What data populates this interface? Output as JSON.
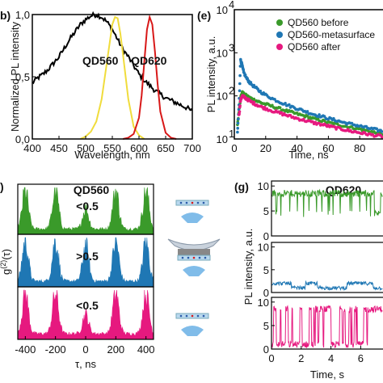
{
  "panels": {
    "b": "b)",
    "e": "(e)",
    "f": ")",
    "g": "(g)"
  },
  "colors": {
    "black": "#000000",
    "yellow": "#f0dc3c",
    "red": "#d81818",
    "green": "#3a9a2a",
    "blue": "#1f77b4",
    "magenta": "#e6197f",
    "qd560_label": "#e6c21e",
    "qd620_label": "#d81818"
  },
  "chart_data": [
    {
      "id": "b",
      "type": "line",
      "xlabel": "Wavelength, nm",
      "ylabel": "Normalized PL intensity",
      "xlim": [
        400,
        700
      ],
      "ylim": [
        0,
        1.0
      ],
      "xticks": [
        "400",
        "450",
        "500",
        "550",
        "600",
        "650",
        "700"
      ],
      "yticks": [
        "0,0",
        "0,5",
        "1,0"
      ],
      "annotations": [
        "QD560",
        "QD620"
      ],
      "series": [
        {
          "color": "black",
          "x": [
            400,
            410,
            420,
            430,
            440,
            450,
            460,
            470,
            480,
            490,
            500,
            510,
            520,
            530,
            540,
            550,
            560,
            570,
            580,
            590,
            600,
            610,
            620,
            630,
            640,
            650,
            660,
            670,
            680,
            690,
            700
          ],
          "y": [
            0.45,
            0.49,
            0.52,
            0.56,
            0.61,
            0.66,
            0.73,
            0.8,
            0.86,
            0.92,
            0.96,
            0.99,
            1.0,
            0.98,
            0.94,
            0.88,
            0.8,
            0.72,
            0.66,
            0.59,
            0.52,
            0.47,
            0.43,
            0.39,
            0.36,
            0.33,
            0.31,
            0.29,
            0.27,
            0.25,
            0.22
          ]
        },
        {
          "name": "QD560",
          "color": "yellow",
          "x": [
            490,
            500,
            510,
            520,
            530,
            540,
            550,
            555,
            560,
            565,
            570,
            580,
            590,
            600,
            610
          ],
          "y": [
            0.0,
            0.02,
            0.06,
            0.14,
            0.32,
            0.62,
            0.92,
            0.98,
            0.97,
            0.85,
            0.68,
            0.32,
            0.1,
            0.03,
            0.0
          ]
        },
        {
          "name": "QD620",
          "color": "red",
          "x": [
            570,
            580,
            590,
            600,
            605,
            610,
            615,
            620,
            625,
            630,
            635,
            640,
            650,
            660,
            670
          ],
          "y": [
            0.0,
            0.01,
            0.04,
            0.17,
            0.35,
            0.62,
            0.88,
            0.98,
            0.92,
            0.7,
            0.44,
            0.22,
            0.05,
            0.01,
            0.0
          ]
        }
      ]
    },
    {
      "id": "e",
      "type": "scatter",
      "xlabel": "Time, ns",
      "ylabel": "PL intensity, a.u.",
      "xlim": [
        0,
        100
      ],
      "ylim_log": [
        10,
        10000
      ],
      "xticks": [
        "0",
        "20",
        "40",
        "60",
        "80"
      ],
      "yticks": [
        "10",
        "10",
        "10",
        "10"
      ],
      "ytick_sups": [
        "1",
        "2",
        "3",
        "4"
      ],
      "legend_position": "top-right",
      "series": [
        {
          "name": "QD560 before",
          "color": "green",
          "x": [
            2,
            3,
            4,
            5,
            6,
            8,
            10,
            13,
            16,
            20,
            25,
            30,
            35,
            40,
            45,
            50,
            55,
            60,
            65,
            70,
            75,
            80,
            85,
            90,
            95,
            100
          ],
          "y": [
            22,
            45,
            90,
            120,
            110,
            100,
            90,
            80,
            72,
            64,
            56,
            49,
            43,
            38,
            34,
            30,
            27,
            24,
            22,
            20,
            18.5,
            17,
            15.5,
            14,
            13,
            12
          ]
        },
        {
          "name": "QD560-metasurface",
          "color": "blue",
          "x": [
            2,
            3,
            4,
            5,
            6,
            8,
            10,
            13,
            16,
            20,
            25,
            30,
            35,
            40,
            45,
            50,
            55,
            60,
            65,
            70,
            75,
            80,
            85,
            90,
            95,
            100
          ],
          "y": [
            14,
            60,
            700,
            500,
            350,
            250,
            200,
            160,
            130,
            105,
            84,
            70,
            59,
            51,
            44,
            38,
            34,
            30,
            27,
            24,
            22,
            20,
            18,
            16.5,
            15,
            14
          ]
        },
        {
          "name": "QD560 after",
          "color": "magenta",
          "x": [
            3,
            4,
            5,
            6,
            8,
            10,
            13,
            16,
            20,
            25,
            30,
            35,
            40,
            45,
            50,
            55,
            60,
            65,
            70,
            75,
            80,
            85,
            90,
            95,
            100
          ],
          "y": [
            35,
            80,
            100,
            95,
            85,
            75,
            66,
            58,
            51,
            44,
            39,
            34,
            30,
            27,
            24,
            22,
            20,
            18,
            16.5,
            15,
            14,
            13,
            12,
            11.5,
            11
          ]
        }
      ]
    },
    {
      "id": "f",
      "type": "area",
      "xlabel": "τ, ns",
      "ylabel": "g(2)(τ)",
      "xlim": [
        -450,
        450
      ],
      "xticks": [
        "-400",
        "-200",
        "0",
        "200",
        "400"
      ],
      "title": "QD560",
      "series": [
        {
          "color": "green",
          "label": "<0.5",
          "peaks": [
            -400,
            -200,
            0,
            200,
            400
          ],
          "peak_height": 0.85,
          "center_height": 0.45
        },
        {
          "color": "blue",
          "label": ">0.5",
          "peaks": [
            -400,
            -200,
            0,
            200,
            400
          ],
          "peak_height": 0.85,
          "center_height": 0.75
        },
        {
          "color": "magenta",
          "label": "<0.5",
          "peaks": [
            -400,
            -200,
            0,
            200,
            400
          ],
          "peak_height": 0.85,
          "center_height": 0.4
        }
      ]
    },
    {
      "id": "g",
      "type": "line",
      "xlabel": "Time, s",
      "ylabel": "PL intensity, a.u.",
      "xlim": [
        0,
        7.5
      ],
      "xticks": [
        "0",
        "2",
        "4",
        "6"
      ],
      "title": "QD620",
      "series": [
        {
          "color": "green",
          "ylim": [
            0,
            11
          ],
          "yticks": [
            "0",
            "5",
            "10"
          ],
          "level_on": 8.5,
          "level_off": 4.5
        },
        {
          "color": "blue",
          "ylim": [
            0,
            11
          ],
          "yticks": [
            "0",
            "5",
            "10"
          ],
          "level_on": 2.0,
          "level_off": 1.0
        },
        {
          "color": "magenta",
          "ylim": [
            0,
            11
          ],
          "yticks": [
            "0",
            "5",
            "10"
          ],
          "level_on": 8.5,
          "level_off": 1.0
        }
      ]
    }
  ]
}
